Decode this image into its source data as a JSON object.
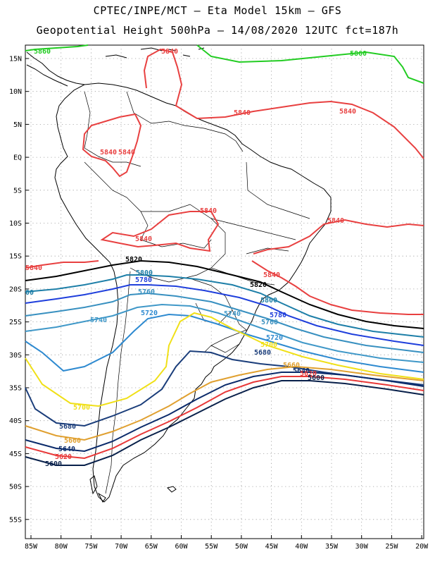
{
  "header": {
    "line1": "CPTEC/INPE/MCT –  Eta Model 15km – GFS",
    "line2": "Geopotential Height 500hPa – 14/08/2020 12UTC fct=187h"
  },
  "axes": {
    "lat_labels": [
      "15N",
      "10N",
      "5N",
      "EQ",
      "5S",
      "10S",
      "15S",
      "20S",
      "25S",
      "30S",
      "35S",
      "40S",
      "45S",
      "50S",
      "55S"
    ],
    "lon_labels": [
      "85W",
      "80W",
      "75W",
      "70W",
      "65W",
      "60W",
      "55W",
      "50W",
      "45W",
      "40W",
      "35W",
      "30W",
      "25W",
      "20W"
    ]
  },
  "colors": {
    "c5860": "#22cc22",
    "c5840": "#e84040",
    "c5820": "#000000",
    "c5800": "#1e7fa8",
    "c5780": "#1f3fdc",
    "c5760": "#3890c0",
    "c5740": "#4098c8",
    "c5720": "#2e8ad0",
    "c5700": "#f0e018",
    "c5680": "#1a3d7a",
    "c5660": "#e0a030",
    "c5640": "#0a2a6a",
    "c5620": "#e83838",
    "c5600": "#08204a"
  },
  "contour_labels": [
    {
      "text": "5860",
      "color": "c5860"
    },
    {
      "text": "5860",
      "color": "c5860"
    },
    {
      "text": "5840",
      "color": "c5840"
    },
    {
      "text": "5840",
      "color": "c5840"
    },
    {
      "text": "5840",
      "color": "c5840"
    },
    {
      "text": "5840",
      "color": "c5840"
    },
    {
      "text": "5840",
      "color": "c5840"
    },
    {
      "text": "5840",
      "color": "c5840"
    },
    {
      "text": "5840",
      "color": "c5840"
    },
    {
      "text": "5840",
      "color": "c5840"
    },
    {
      "text": "5840",
      "color": "c5840"
    },
    {
      "text": "5840",
      "color": "c5840"
    },
    {
      "text": "5820",
      "color": "c5820"
    },
    {
      "text": "5820",
      "color": "c5820"
    },
    {
      "text": "5800",
      "color": "c5800"
    },
    {
      "text": "5800",
      "color": "c5800"
    },
    {
      "text": "00",
      "color": "c5800"
    },
    {
      "text": "5780",
      "color": "c5780"
    },
    {
      "text": "5780",
      "color": "c5780"
    },
    {
      "text": "5760",
      "color": "c5760"
    },
    {
      "text": "5760",
      "color": "c5760"
    },
    {
      "text": "5740",
      "color": "c5740"
    },
    {
      "text": "5740",
      "color": "c5740"
    },
    {
      "text": "5720",
      "color": "c5720"
    },
    {
      "text": "5720",
      "color": "c5720"
    },
    {
      "text": "5700",
      "color": "c5700"
    },
    {
      "text": "5700",
      "color": "c5700"
    },
    {
      "text": "5680",
      "color": "c5680"
    },
    {
      "text": "5680",
      "color": "c5680"
    },
    {
      "text": "5660",
      "color": "c5660"
    },
    {
      "text": "5660",
      "color": "c5660"
    },
    {
      "text": "5640",
      "color": "c5640"
    },
    {
      "text": "5640",
      "color": "c5640"
    },
    {
      "text": "5620",
      "color": "c5620"
    },
    {
      "text": "5620",
      "color": "c5620"
    },
    {
      "text": "5600",
      "color": "c5600"
    },
    {
      "text": "5600",
      "color": "c5600"
    }
  ]
}
